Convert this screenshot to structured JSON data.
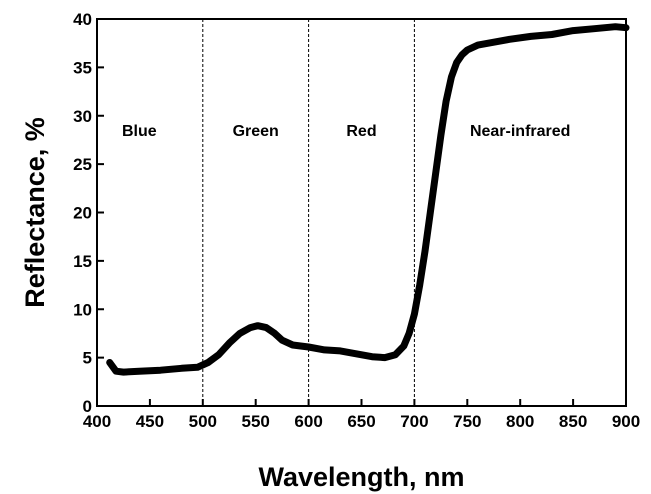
{
  "chart_data": {
    "type": "line",
    "title": "",
    "xlabel": "Wavelength, nm",
    "ylabel": "Reflectance, %",
    "xlim": [
      400,
      900
    ],
    "ylim": [
      0,
      40
    ],
    "x_ticks": [
      400,
      450,
      500,
      550,
      600,
      650,
      700,
      750,
      800,
      850,
      900
    ],
    "y_ticks": [
      0,
      5,
      10,
      15,
      20,
      25,
      30,
      35,
      40
    ],
    "grid": false,
    "band_dividers": [
      500,
      600,
      700
    ],
    "bands": [
      {
        "label": "Blue",
        "x": 440
      },
      {
        "label": "Green",
        "x": 550
      },
      {
        "label": "Red",
        "x": 650
      },
      {
        "label": "Near-infrared",
        "x": 800
      }
    ],
    "series": [
      {
        "x": [
          412,
          418,
          425,
          440,
          460,
          480,
          495,
          505,
          515,
          525,
          535,
          545,
          552,
          560,
          568,
          575,
          585,
          600,
          615,
          630,
          645,
          660,
          672,
          682,
          690,
          695,
          700,
          705,
          710,
          715,
          720,
          725,
          730,
          735,
          740,
          745,
          750,
          760,
          775,
          790,
          810,
          830,
          850,
          870,
          890,
          900
        ],
        "y": [
          4.5,
          3.6,
          3.5,
          3.6,
          3.7,
          3.9,
          4.0,
          4.5,
          5.3,
          6.5,
          7.5,
          8.1,
          8.3,
          8.1,
          7.5,
          6.8,
          6.3,
          6.1,
          5.8,
          5.7,
          5.4,
          5.1,
          5.0,
          5.3,
          6.2,
          7.5,
          9.5,
          12.5,
          16.0,
          20.0,
          24.0,
          28.0,
          31.5,
          34.0,
          35.5,
          36.3,
          36.8,
          37.3,
          37.6,
          37.9,
          38.2,
          38.4,
          38.8,
          39.0,
          39.2,
          39.1
        ]
      }
    ],
    "line_color": "#000000"
  }
}
